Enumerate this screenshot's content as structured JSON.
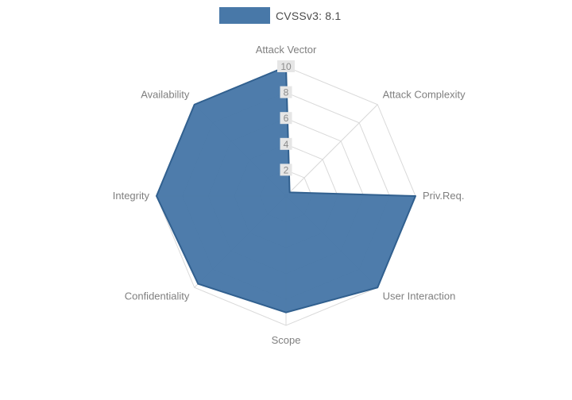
{
  "legend": {
    "label": "CVSSv3: 8.1",
    "swatch_color": "#4878a8"
  },
  "chart_data": {
    "type": "radar",
    "title": "CVSSv3: 8.1",
    "axes": [
      "Attack Vector",
      "Attack Complexity",
      "Priv.Req.",
      "User Interaction",
      "Scope",
      "Confidentiality",
      "Integrity",
      "Availability"
    ],
    "series": [
      {
        "name": "CVSSv3: 8.1",
        "values": [
          10,
          0.4,
          10,
          10,
          9,
          9.6,
          10,
          10
        ],
        "fill": "#4878a8",
        "fill_opacity": 0.97,
        "stroke": "#31608f"
      }
    ],
    "ticks": [
      2,
      4,
      6,
      8,
      10
    ],
    "rmax": 10,
    "grid": true,
    "grid_color": "#d9d9d9",
    "tick_label_color": "#8a8a8a",
    "tick_label_bg": "#e6e6e6",
    "axis_label_color": "#7f7f7f",
    "legend_position": "top"
  }
}
